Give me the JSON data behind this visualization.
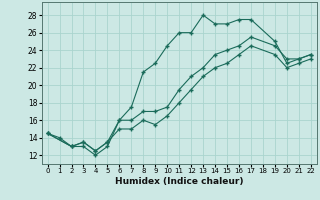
{
  "xlabel": "Humidex (Indice chaleur)",
  "background_color": "#cce8e4",
  "grid_color": "#aad4ce",
  "line_color": "#1a6b5a",
  "xlim": [
    -0.5,
    22.5
  ],
  "ylim": [
    11.0,
    29.5
  ],
  "xticks": [
    0,
    1,
    2,
    3,
    4,
    5,
    6,
    7,
    8,
    9,
    10,
    11,
    12,
    13,
    14,
    15,
    16,
    17,
    18,
    19,
    20,
    21,
    22
  ],
  "yticks": [
    12,
    14,
    16,
    18,
    20,
    22,
    24,
    26,
    28
  ],
  "line1_x": [
    0,
    1,
    2,
    3,
    4,
    5,
    6,
    7,
    8,
    9,
    10,
    11,
    12,
    13,
    14,
    15,
    16,
    17,
    19,
    20,
    21,
    22
  ],
  "line1_y": [
    14.5,
    14.0,
    13.0,
    13.0,
    12.0,
    13.0,
    16.0,
    17.5,
    21.5,
    22.5,
    24.5,
    26.0,
    26.0,
    28.0,
    27.0,
    27.0,
    27.5,
    27.5,
    25.0,
    22.5,
    23.0,
    23.5
  ],
  "line2_x": [
    0,
    2,
    3,
    4,
    5,
    6,
    7,
    8,
    9,
    10,
    11,
    12,
    13,
    14,
    15,
    16,
    17,
    19,
    20,
    21,
    22
  ],
  "line2_y": [
    14.5,
    13.0,
    13.5,
    12.5,
    13.5,
    16.0,
    16.0,
    17.0,
    17.0,
    17.5,
    19.5,
    21.0,
    22.0,
    23.5,
    24.0,
    24.5,
    25.5,
    24.5,
    23.0,
    23.0,
    23.5
  ],
  "line3_x": [
    0,
    2,
    3,
    4,
    5,
    6,
    7,
    8,
    9,
    10,
    11,
    12,
    13,
    14,
    15,
    16,
    17,
    19,
    20,
    21,
    22
  ],
  "line3_y": [
    14.5,
    13.0,
    13.5,
    12.5,
    13.5,
    15.0,
    15.0,
    16.0,
    15.5,
    16.5,
    18.0,
    19.5,
    21.0,
    22.0,
    22.5,
    23.5,
    24.5,
    23.5,
    22.0,
    22.5,
    23.0
  ]
}
